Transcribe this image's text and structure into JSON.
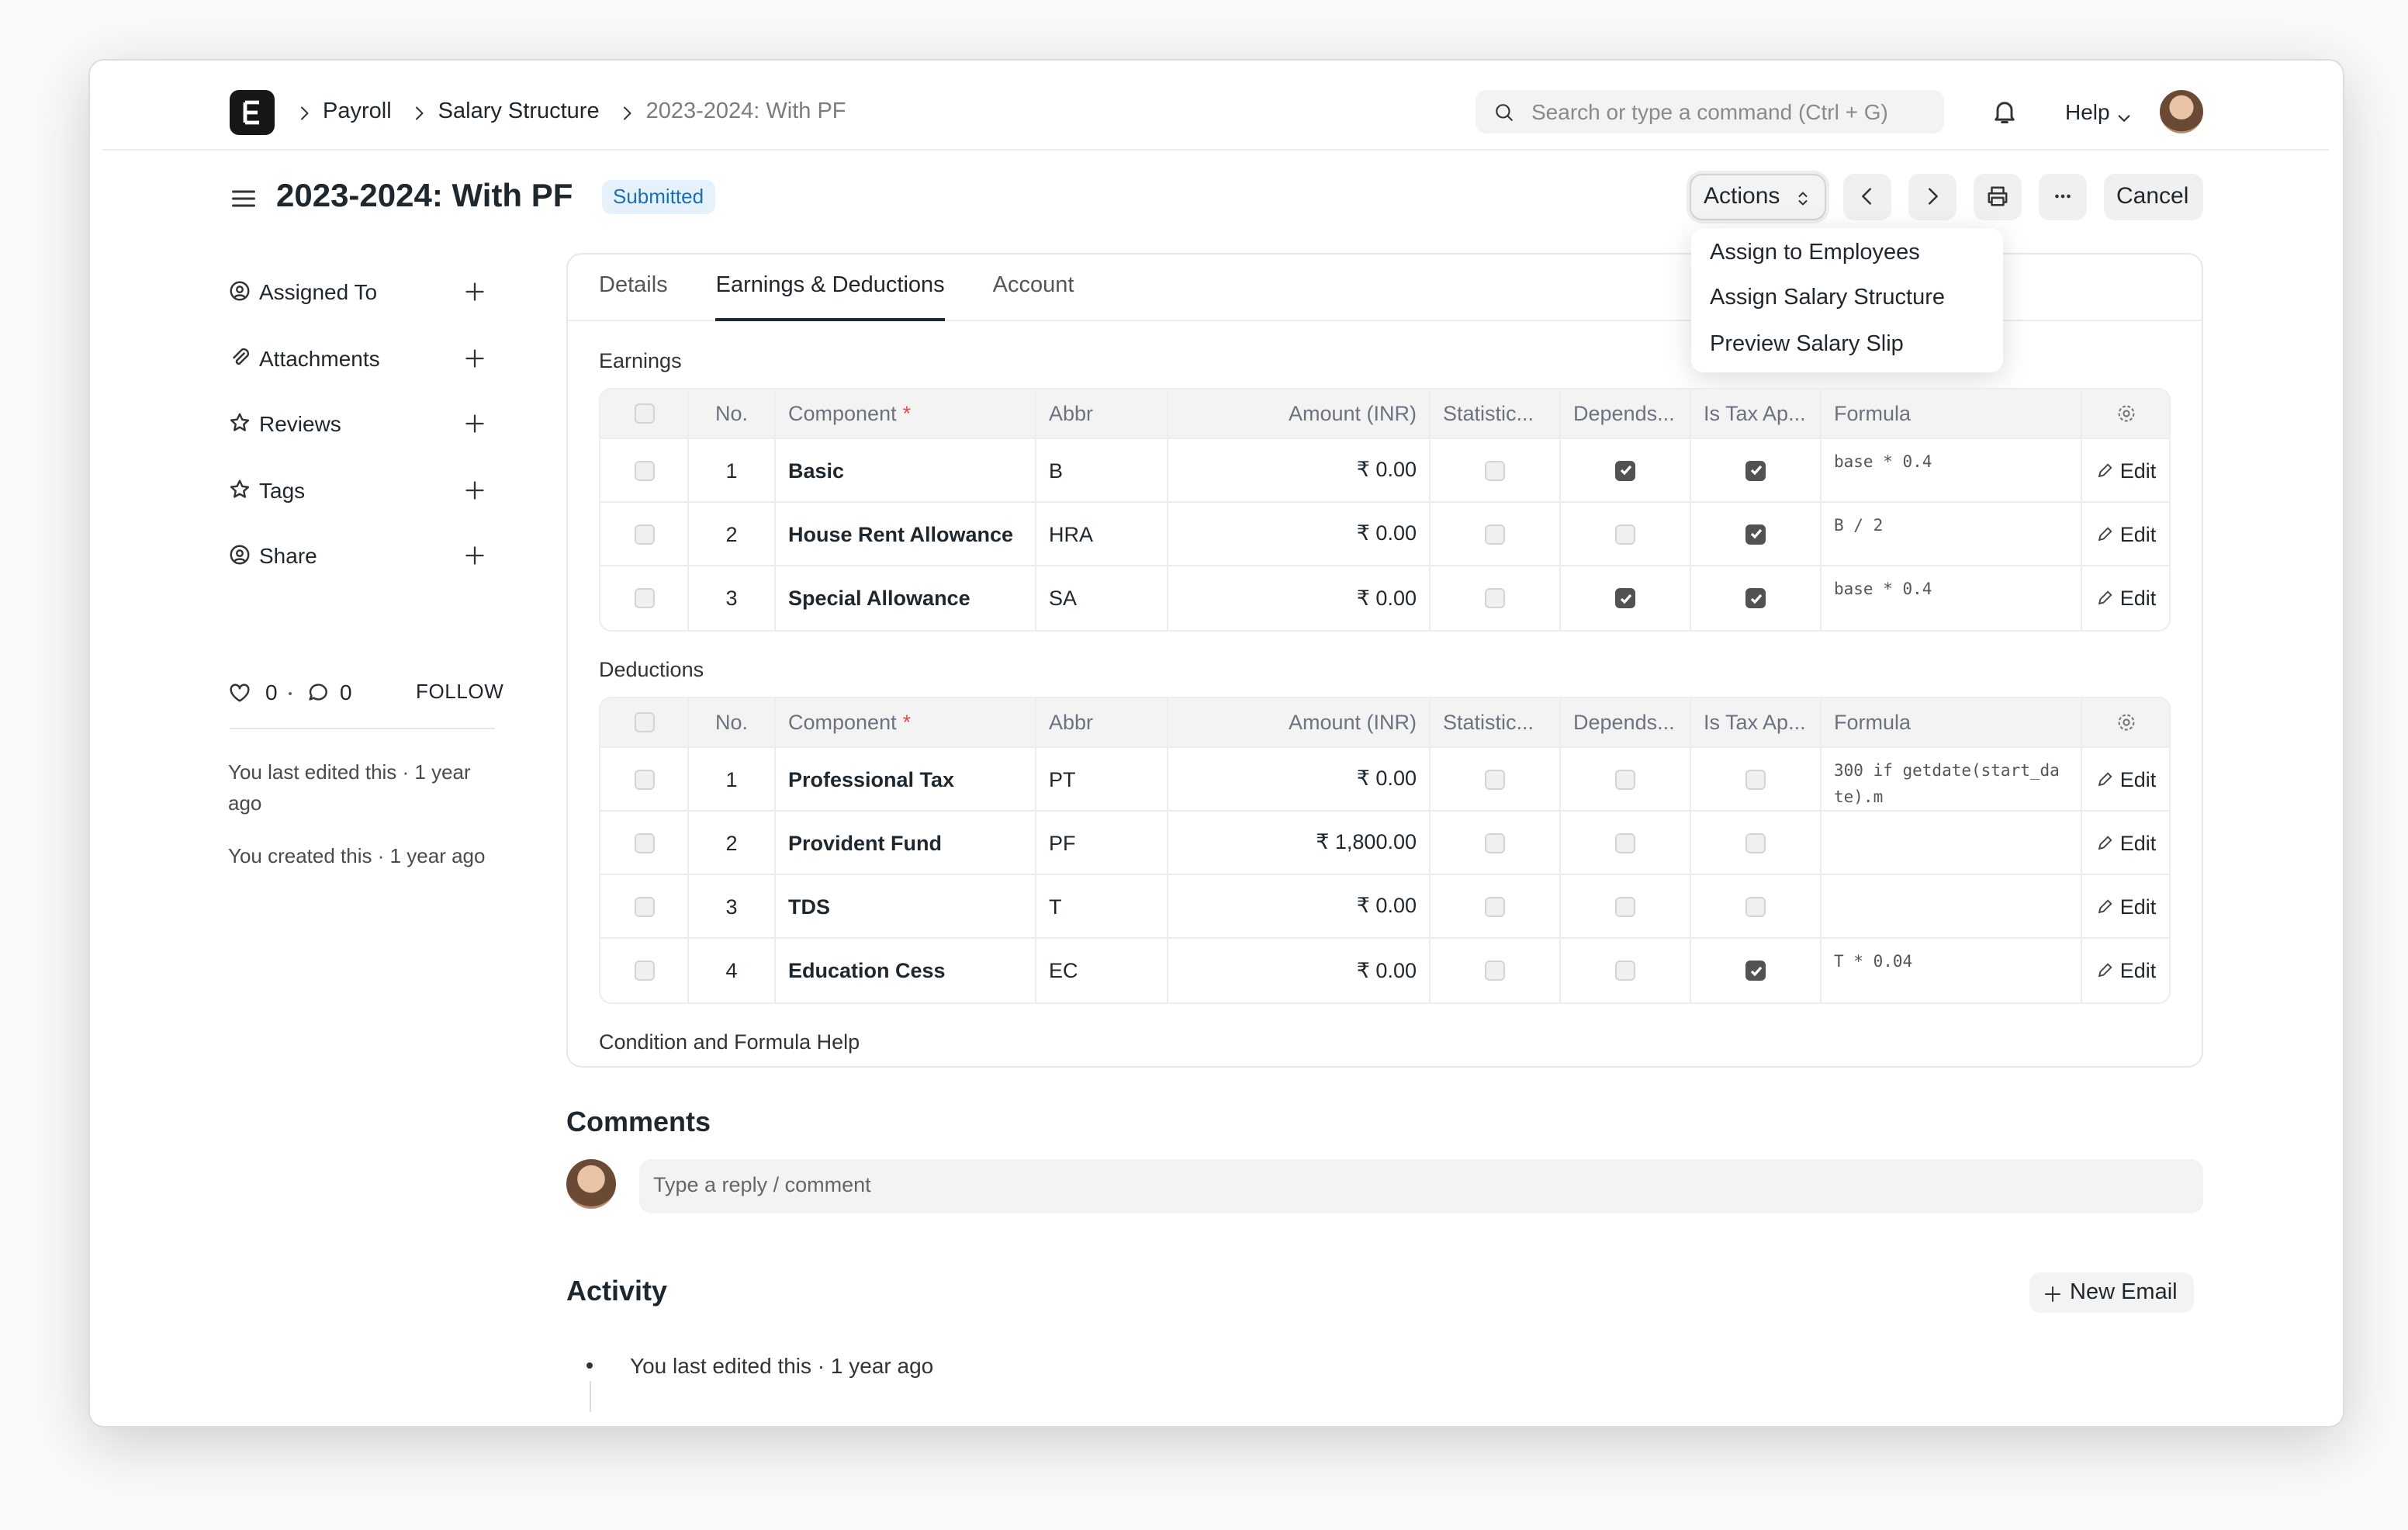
{
  "header": {
    "breadcrumbs": [
      "Payroll",
      "Salary Structure",
      "2023-2024: With PF"
    ],
    "search_placeholder": "Search or type a command (Ctrl + G)",
    "help": "Help"
  },
  "page": {
    "title": "2023-2024: With PF",
    "status": "Submitted",
    "actions": "Actions",
    "actions_menu": [
      "Assign to Employees",
      "Assign Salary Structure",
      "Preview Salary Slip"
    ],
    "cancel": "Cancel"
  },
  "sidebar": {
    "items": [
      "Assigned To",
      "Attachments",
      "Reviews",
      "Tags",
      "Share"
    ],
    "likes": "0",
    "comments": "0",
    "follow": "FOLLOW",
    "edited": "You last edited this · 1 year ago",
    "created": "You created this · 1 year ago"
  },
  "tabs": {
    "items": [
      "Details",
      "Earnings & Deductions",
      "Account"
    ],
    "active": 1
  },
  "columns": [
    "No.",
    "Component",
    "Abbr",
    "Amount (INR)",
    "Statistic...",
    "Depends...",
    "Is Tax Ap...",
    "Formula"
  ],
  "edit": "Edit",
  "earnings": {
    "title": "Earnings",
    "rows": [
      {
        "no": 1,
        "component": "Basic",
        "abbr": "B",
        "amount": "₹ 0.00",
        "statistical": false,
        "depends": true,
        "tax": true,
        "formula": "base * 0.4"
      },
      {
        "no": 2,
        "component": "House Rent Allowance",
        "abbr": "HRA",
        "amount": "₹ 0.00",
        "statistical": false,
        "depends": false,
        "tax": true,
        "formula": "B / 2"
      },
      {
        "no": 3,
        "component": "Special Allowance",
        "abbr": "SA",
        "amount": "₹ 0.00",
        "statistical": false,
        "depends": true,
        "tax": true,
        "formula": "base * 0.4"
      }
    ]
  },
  "deductions": {
    "title": "Deductions",
    "rows": [
      {
        "no": 1,
        "component": "Professional Tax",
        "abbr": "PT",
        "amount": "₹ 0.00",
        "statistical": false,
        "depends": false,
        "tax": false,
        "formula": "300 if getdate(start_date).m"
      },
      {
        "no": 2,
        "component": "Provident Fund",
        "abbr": "PF",
        "amount": "₹ 1,800.00",
        "statistical": false,
        "depends": false,
        "tax": false,
        "formula": null
      },
      {
        "no": 3,
        "component": "TDS",
        "abbr": "T",
        "amount": "₹ 0.00",
        "statistical": false,
        "depends": false,
        "tax": false,
        "formula": null
      },
      {
        "no": 4,
        "component": "Education Cess",
        "abbr": "EC",
        "amount": "₹ 0.00",
        "statistical": false,
        "depends": false,
        "tax": true,
        "formula": "T * 0.04"
      }
    ]
  },
  "formula_help": "Condition and Formula Help",
  "comments": {
    "title": "Comments",
    "placeholder": "Type a reply / comment"
  },
  "activity": {
    "title": "Activity",
    "new_email": "New Email",
    "items": [
      "You last edited this · 1 year ago"
    ]
  }
}
